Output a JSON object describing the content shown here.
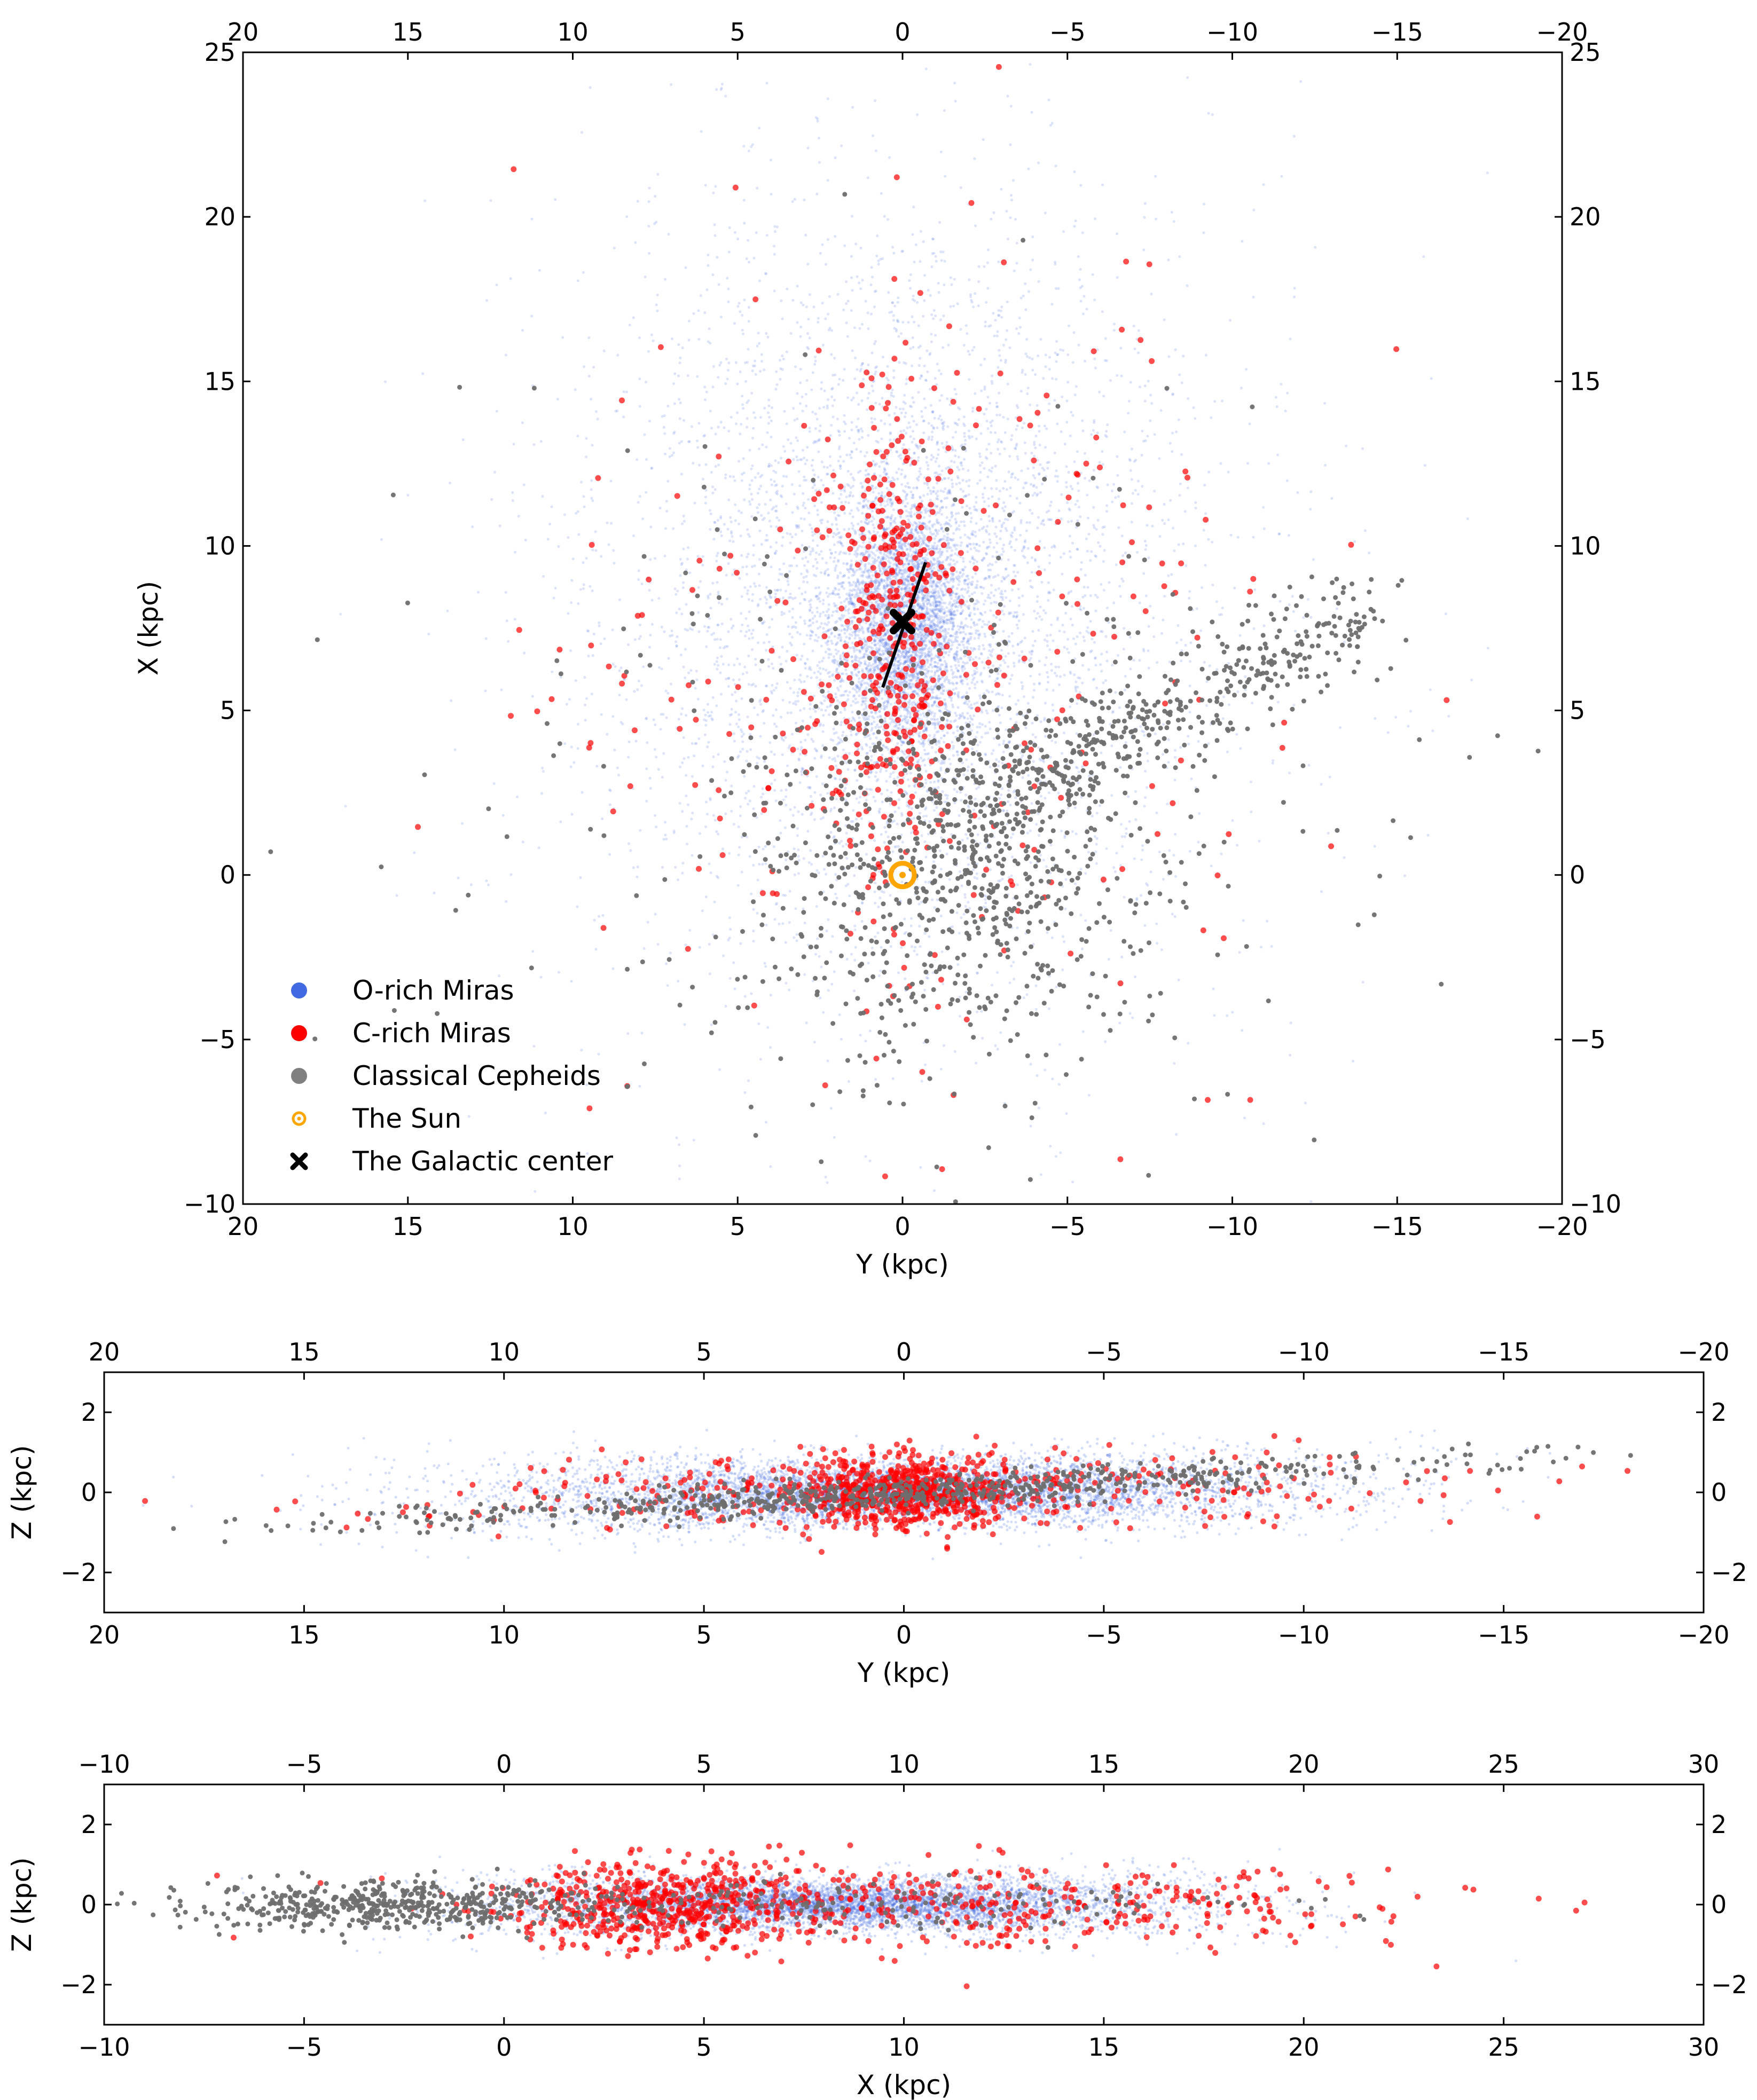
{
  "chart_data": [
    {
      "type": "scatter",
      "panel": "top",
      "xlabel": "Y (kpc)",
      "ylabel": "X (kpc)",
      "xlim": [
        20,
        -20
      ],
      "ylim": [
        -10,
        25
      ],
      "xticks": [
        20,
        15,
        10,
        5,
        0,
        -5,
        -10,
        -15,
        -20
      ],
      "yticks": [
        -10,
        -5,
        0,
        5,
        10,
        15,
        20,
        25
      ],
      "xtick_labels": [
        "20",
        "15",
        "10",
        "5",
        "0",
        "−5",
        "−10",
        "−15",
        "−20"
      ],
      "ytick_labels": [
        "−10",
        "−5",
        "0",
        "5",
        "10",
        "15",
        "20",
        "25"
      ],
      "mirrored_axes": true,
      "grid": false,
      "legend_position": "lower-left",
      "series": [
        {
          "name": "O-rich Miras",
          "color": "#4169e1",
          "marker": "dot"
        },
        {
          "name": "C-rich Miras",
          "color": "#ff0000",
          "marker": "dot"
        },
        {
          "name": "Classical Cepheids",
          "color": "#808080",
          "marker": "dot"
        },
        {
          "name": "The Sun",
          "color": "#ffa500",
          "marker": "circle-dot",
          "points": [
            [
              0,
              0
            ]
          ]
        },
        {
          "name": "The Galactic center",
          "color": "#000000",
          "marker": "x",
          "points": [
            [
              0,
              7.7
            ]
          ]
        }
      ],
      "bar_line": {
        "from": [
          0.6,
          5.7
        ],
        "to": [
          -0.7,
          9.5
        ],
        "color": "#000000"
      }
    },
    {
      "type": "scatter",
      "panel": "middle",
      "xlabel": "Y (kpc)",
      "ylabel": "Z (kpc)",
      "xlim": [
        20,
        -20
      ],
      "ylim": [
        -3,
        3
      ],
      "xticks": [
        20,
        15,
        10,
        5,
        0,
        -5,
        -10,
        -15,
        -20
      ],
      "yticks": [
        -2,
        0,
        2
      ],
      "xtick_labels": [
        "20",
        "15",
        "10",
        "5",
        "0",
        "−5",
        "−10",
        "−15",
        "−20"
      ],
      "ytick_labels": [
        "−2",
        "0",
        "2"
      ],
      "mirrored_axes": true,
      "grid": false
    },
    {
      "type": "scatter",
      "panel": "bottom",
      "xlabel": "X (kpc)",
      "ylabel": "Z (kpc)",
      "xlim": [
        -10,
        30
      ],
      "ylim": [
        -3,
        3
      ],
      "xticks": [
        -10,
        -5,
        0,
        5,
        10,
        15,
        20,
        25,
        30
      ],
      "yticks": [
        -2,
        0,
        2
      ],
      "xtick_labels": [
        "−10",
        "−5",
        "0",
        "5",
        "10",
        "15",
        "20",
        "25",
        "30"
      ],
      "ytick_labels": [
        "−2",
        "0",
        "2"
      ],
      "mirrored_axes": true,
      "grid": false
    }
  ]
}
